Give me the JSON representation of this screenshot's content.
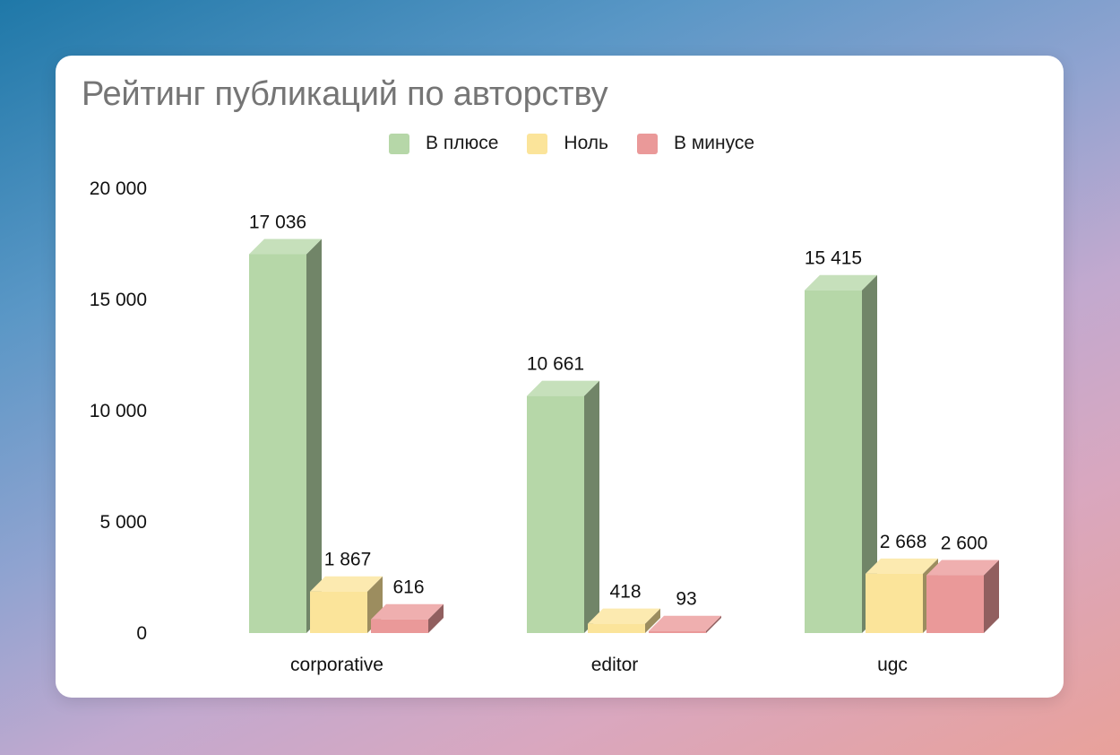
{
  "chart_data": {
    "type": "bar",
    "title": "Рейтинг публикаций по авторству",
    "xlabel": "",
    "ylabel": "",
    "ylim": [
      0,
      20000
    ],
    "yticks": [
      "0",
      "5 000",
      "10 000",
      "15 000",
      "20 000"
    ],
    "grid": false,
    "legend_position": "top",
    "three_d": true,
    "categories": [
      "corporative",
      "editor",
      "ugc"
    ],
    "series": [
      {
        "name": "В плюсе",
        "color": "#b6d7a8",
        "values": [
          17036,
          10661,
          15415
        ],
        "labels": [
          "17 036",
          "10 661",
          "15 415"
        ]
      },
      {
        "name": "Ноль",
        "color": "#fbe49a",
        "values": [
          1867,
          418,
          2668
        ],
        "labels": [
          "1 867",
          "418",
          "2 668"
        ]
      },
      {
        "name": "В минусе",
        "color": "#ea9999",
        "values": [
          616,
          93,
          2600
        ],
        "labels": [
          "616",
          "93",
          "2 600"
        ]
      }
    ]
  },
  "legend": {
    "items": [
      {
        "label": "В плюсе",
        "color": "#b6d7a8"
      },
      {
        "label": "Ноль",
        "color": "#fbe49a"
      },
      {
        "label": "В минусе",
        "color": "#ea9999"
      }
    ]
  }
}
